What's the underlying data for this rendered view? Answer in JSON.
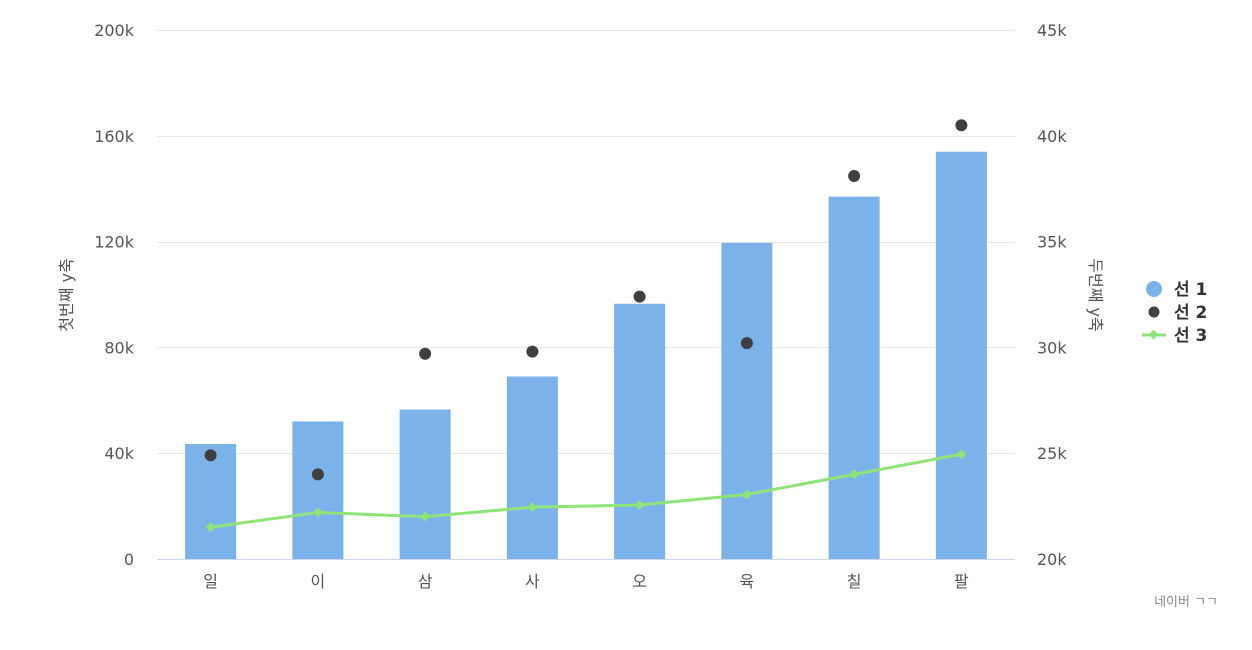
{
  "chart_data": {
    "type": "bar",
    "categories": [
      "일",
      "이",
      "삼",
      "사",
      "오",
      "육",
      "칠",
      "팔"
    ],
    "y_axis": {
      "label": "첫번째 y축",
      "min": 0,
      "max": 200000,
      "ticks": [
        0,
        40000,
        80000,
        120000,
        160000,
        200000
      ],
      "tick_labels": [
        "0",
        "40k",
        "80k",
        "120k",
        "160k",
        "200k"
      ]
    },
    "y2_axis": {
      "label": "두번째 y축",
      "min": 20000,
      "max": 45000,
      "ticks": [
        20000,
        25000,
        30000,
        35000,
        40000,
        45000
      ],
      "tick_labels": [
        "20k",
        "25k",
        "30k",
        "35k",
        "40k",
        "45k"
      ]
    },
    "series": [
      {
        "name": "선 1",
        "type": "bar",
        "axis": "y",
        "color": "#7cb2ea",
        "values": [
          43500,
          52000,
          56500,
          69000,
          96500,
          119500,
          137000,
          154000
        ]
      },
      {
        "name": "선 2",
        "type": "scatter",
        "axis": "y2",
        "color": "#3f3f3f",
        "values": [
          24900,
          24000,
          29700,
          29800,
          32400,
          30200,
          38100,
          40500
        ]
      },
      {
        "name": "선 3",
        "type": "line",
        "axis": "y2",
        "color": "#8ee477",
        "values": [
          21500,
          22200,
          22000,
          22450,
          22550,
          23050,
          24000,
          24950
        ]
      }
    ],
    "grid": true,
    "legend_position": "right"
  },
  "credit": "네이버 ㄱㄱ"
}
